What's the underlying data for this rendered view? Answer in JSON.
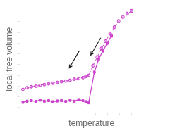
{
  "chart_data": {
    "type": "line",
    "title": "",
    "xlabel": "temperature",
    "ylabel": "local free volume",
    "xlim": [
      0,
      1
    ],
    "ylim": [
      0,
      1
    ],
    "xticks": [
      0.02,
      0.10444444444444445,
      0.18888888888888888,
      0.2733333333333333,
      0.35777777777777775,
      0.44222222222222224,
      0.5266666666666666,
      0.6111111111111112,
      0.6955555555555555,
      0.78
    ],
    "yticks": [
      0.05,
      0.15,
      0.25,
      0.35,
      0.45,
      0.55,
      0.65,
      0.75,
      0.85,
      0.95
    ],
    "tick_labels": false,
    "grid": false,
    "series": [
      {
        "color": "#CC44CC",
        "line_style": "solid",
        "marker": "square",
        "x": [
          0.02,
          0.05,
          0.08,
          0.11,
          0.14,
          0.17,
          0.2,
          0.23,
          0.26,
          0.29,
          0.32,
          0.35,
          0.38,
          0.41,
          0.44,
          0.46,
          0.48,
          0.52,
          0.55,
          0.58,
          0.61,
          0.64
        ],
        "values": [
          0.1,
          0.11,
          0.115,
          0.108,
          0.12,
          0.11,
          0.115,
          0.105,
          0.112,
          0.115,
          0.108,
          0.118,
          0.11,
          0.125,
          0.115,
          0.105,
          0.095,
          0.38,
          0.5,
          0.58,
          0.65,
          0.72
        ],
        "yerr": [
          0.01,
          0.01,
          0.01,
          0.01,
          0.01,
          0.01,
          0.01,
          0.01,
          0.01,
          0.01,
          0.01,
          0.01,
          0.01,
          0.01,
          0.01,
          0.01,
          0.01,
          0.015,
          0.015,
          0.015,
          0.015,
          0.015
        ]
      },
      {
        "color": "#CC44CC",
        "line_style": "dashed",
        "marker": "open_circle",
        "x": [
          0.02,
          0.05,
          0.08,
          0.11,
          0.14,
          0.17,
          0.2,
          0.23,
          0.26,
          0.29,
          0.32,
          0.35,
          0.38,
          0.41,
          0.44,
          0.46,
          0.48,
          0.51,
          0.54,
          0.57,
          0.6,
          0.63,
          0.66,
          0.69,
          0.72,
          0.75,
          0.78
        ],
        "values": [
          0.22,
          0.235,
          0.245,
          0.25,
          0.258,
          0.265,
          0.272,
          0.278,
          0.285,
          0.292,
          0.298,
          0.305,
          0.315,
          0.32,
          0.33,
          0.34,
          0.35,
          0.44,
          0.52,
          0.6,
          0.67,
          0.74,
          0.8,
          0.855,
          0.895,
          0.925,
          0.95
        ],
        "yerr": [
          0.01,
          0.01,
          0.01,
          0.01,
          0.01,
          0.01,
          0.01,
          0.01,
          0.01,
          0.01,
          0.01,
          0.01,
          0.01,
          0.01,
          0.01,
          0.01,
          0.01,
          0.015,
          0.015,
          0.015,
          0.015,
          0.015,
          0.015,
          0.015,
          0.015,
          0.015,
          0.015
        ]
      }
    ],
    "arrows": [
      {
        "from": [
          0.415,
          0.58
        ],
        "to": [
          0.345,
          0.42
        ],
        "color": "#222222"
      },
      {
        "from": [
          0.565,
          0.7
        ],
        "to": [
          0.495,
          0.54
        ],
        "color": "#222222"
      }
    ]
  }
}
